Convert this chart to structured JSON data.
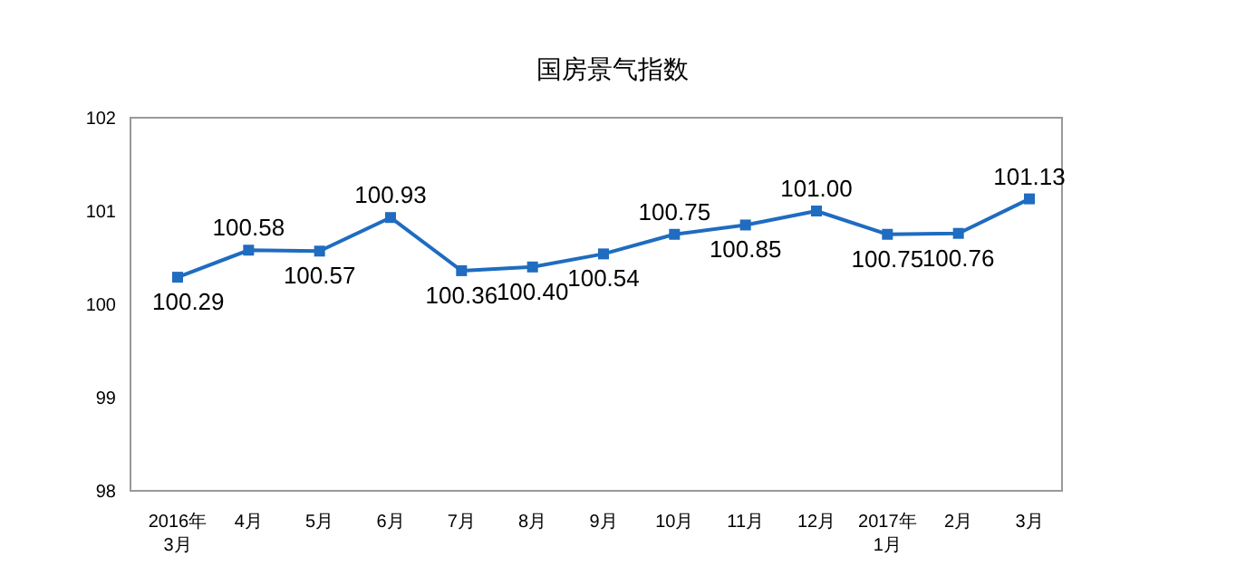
{
  "chart_data": {
    "type": "line",
    "title": "国房景气指数",
    "categories": [
      "2016年\n3月",
      "4月",
      "5月",
      "6月",
      "7月",
      "8月",
      "9月",
      "10月",
      "11月",
      "12月",
      "2017年\n1月",
      "2月",
      "3月"
    ],
    "series": [
      {
        "color": "#1f6cc0",
        "values": [
          100.29,
          100.58,
          100.57,
          100.93,
          100.36,
          100.4,
          100.54,
          100.75,
          100.85,
          101.0,
          100.75,
          100.76,
          101.13
        ],
        "value_labels": [
          "100.29",
          "100.58",
          "100.57",
          "100.93",
          "100.36",
          "100.40",
          "100.54",
          "100.75",
          "100.85",
          "101.00",
          "100.75",
          "100.76",
          "101.13"
        ]
      }
    ],
    "ylim": [
      98,
      102
    ],
    "yticks": [
      98,
      99,
      100,
      101,
      102
    ],
    "marker": "square",
    "line_style": "solid"
  }
}
